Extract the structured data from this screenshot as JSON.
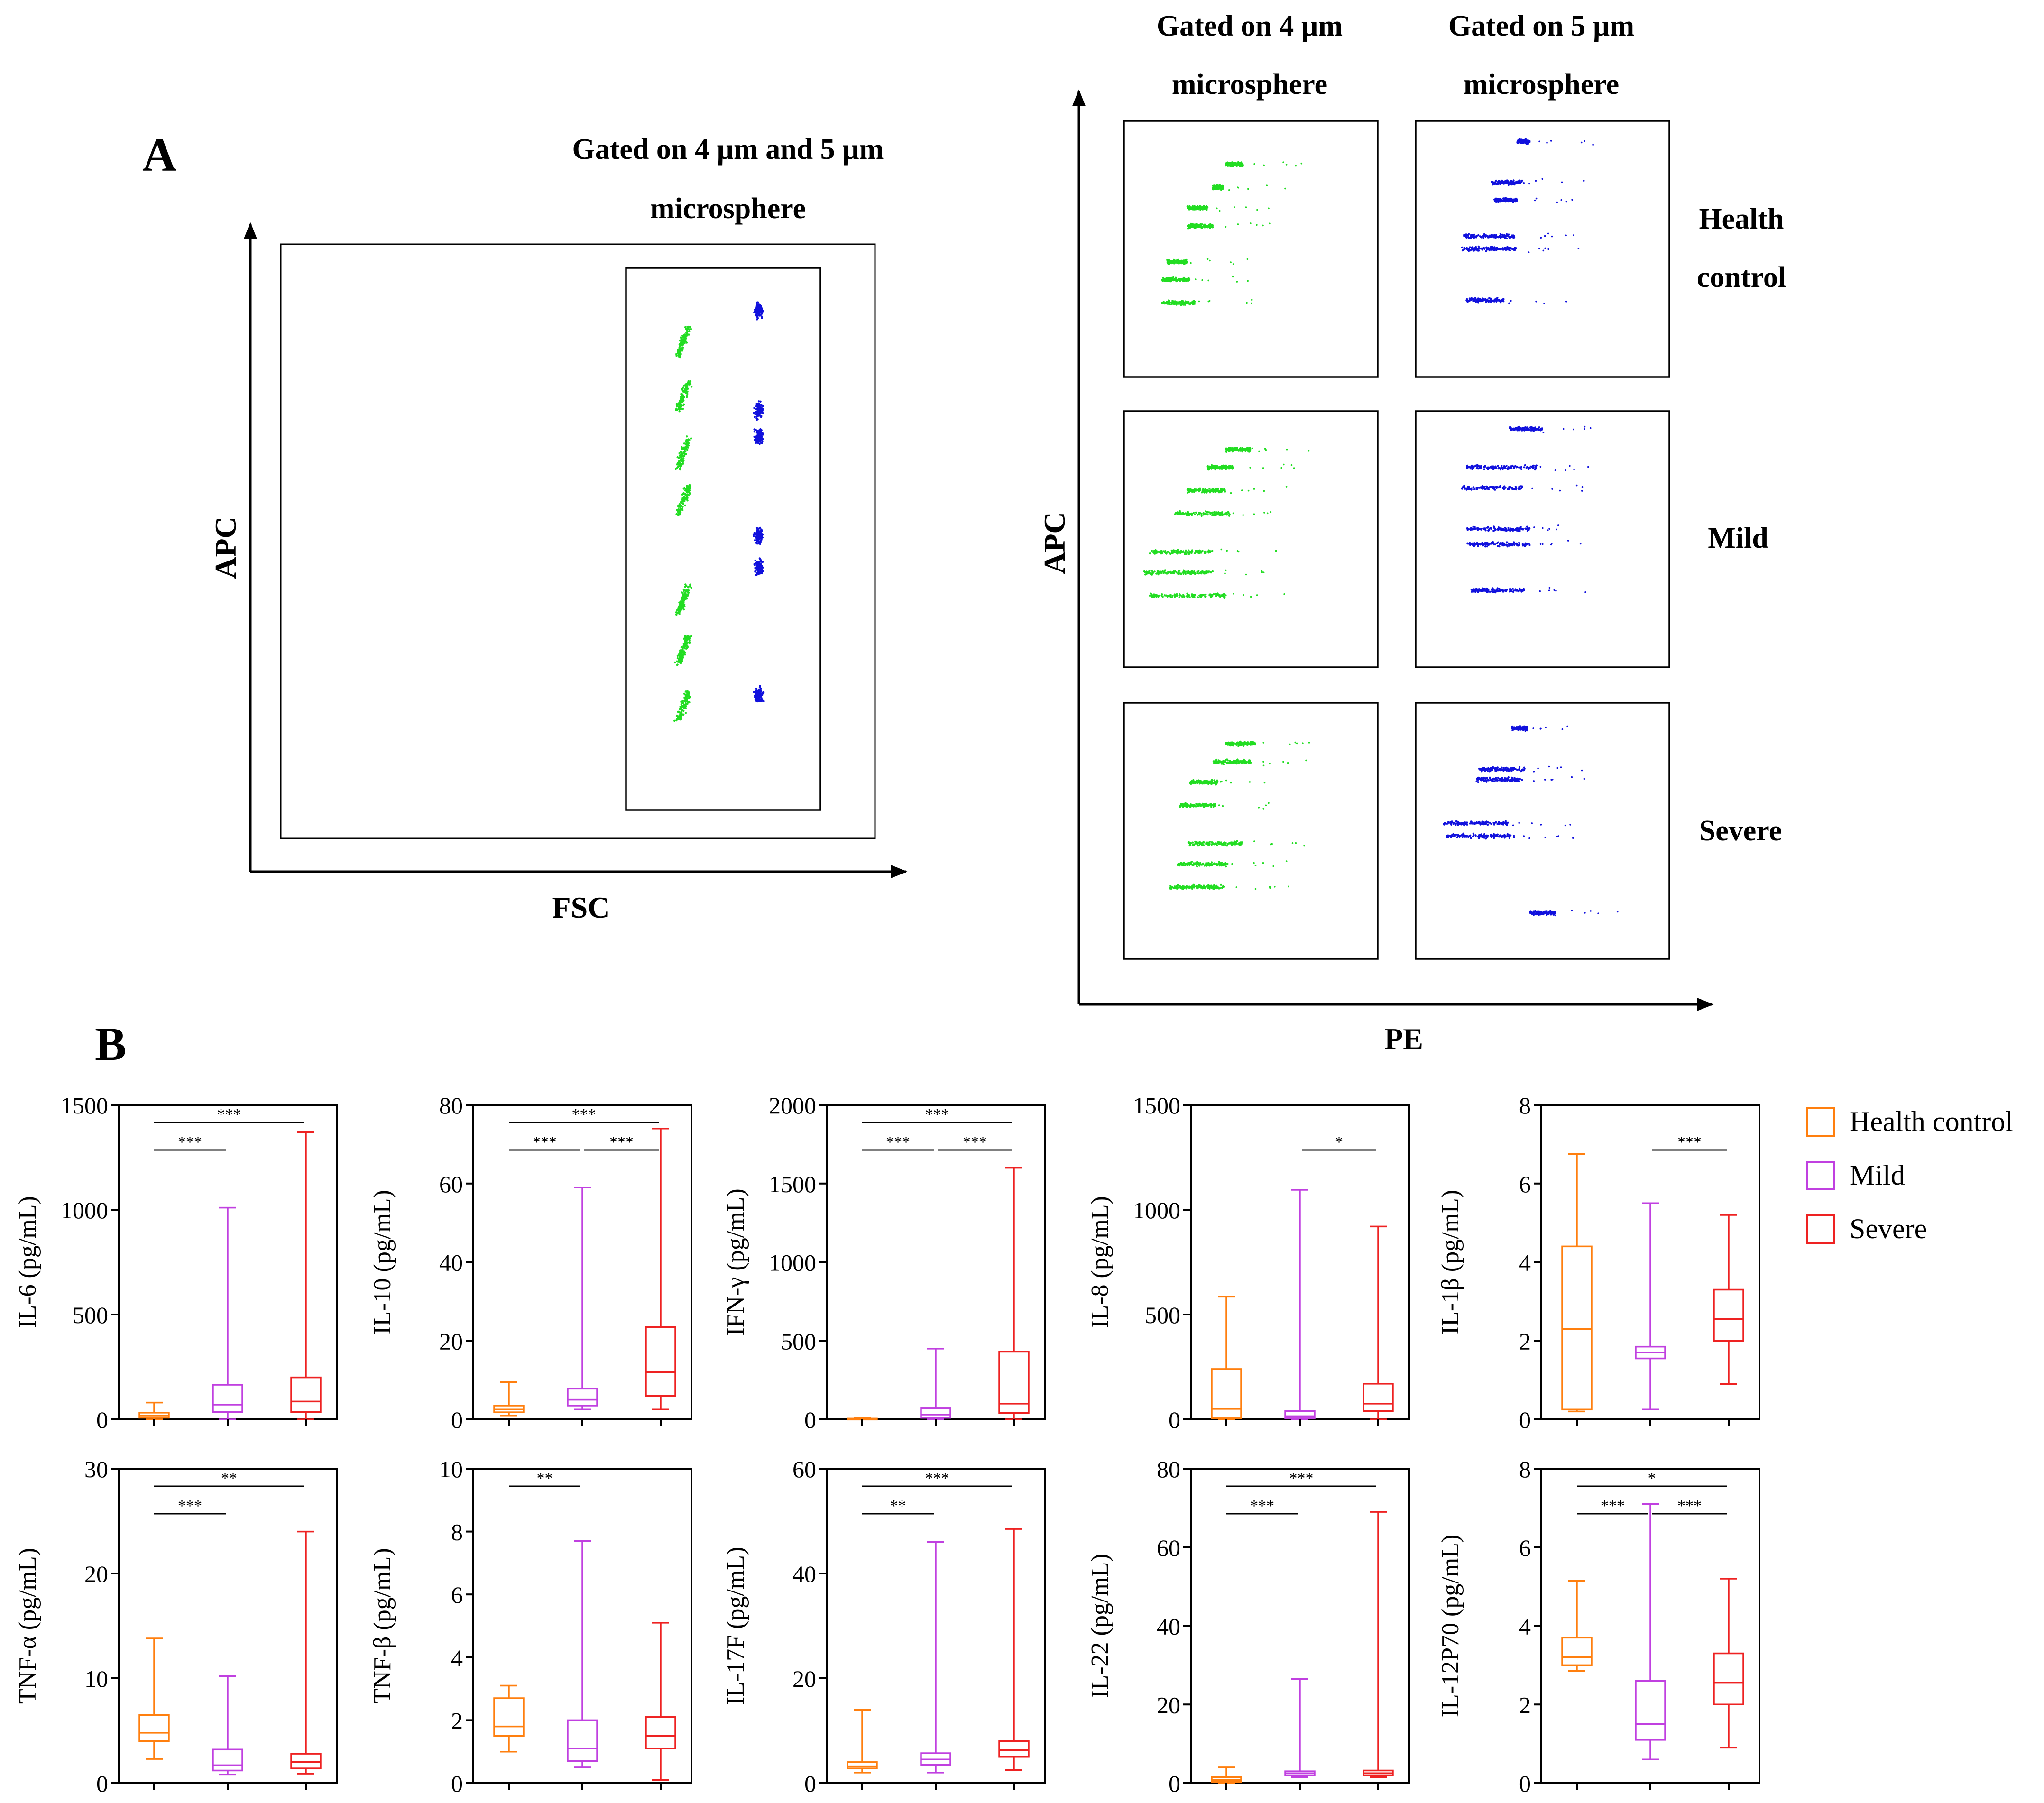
{
  "panel_a": {
    "label": "A",
    "left_title_line1": "Gated on 4 µm and 5 µm",
    "left_title_line2": "microsphere",
    "left_xlabel": "FSC",
    "left_ylabel": "APC",
    "col1_title_line1": "Gated on 4 µm",
    "col1_title_line2": "microsphere",
    "col2_title_line1": "Gated on 5 µm",
    "col2_title_line2": "microsphere",
    "row_labels": [
      [
        "Health",
        "control"
      ],
      [
        "Mild"
      ],
      [
        "Severe"
      ]
    ],
    "right_xlabel": "PE",
    "right_ylabel": "APC",
    "colors": {
      "4um": "#22dd22",
      "5um": "#1111dd"
    }
  },
  "panel_b": {
    "label": "B",
    "legend": [
      {
        "name": "Health control",
        "color": "#ff7f0e"
      },
      {
        "name": "Mild",
        "color": "#c040e0"
      },
      {
        "name": "Severe",
        "color": "#ee2222"
      }
    ]
  },
  "chart_data": [
    {
      "type": "box",
      "ylabel": "IL-6 (pg/mL)",
      "ylim": [
        0,
        1500
      ],
      "ticks": [
        "0",
        "500",
        "1000",
        "1500"
      ],
      "boxes": [
        {
          "min": 0,
          "q1": 8,
          "median": 18,
          "q3": 32,
          "max": 80
        },
        {
          "min": 0,
          "q1": 35,
          "median": 70,
          "q3": 165,
          "max": 1010
        },
        {
          "min": 0,
          "q1": 35,
          "median": 85,
          "q3": 200,
          "max": 1370
        }
      ],
      "sig": [
        {
          "from": 0,
          "to": 1,
          "label": "***",
          "level": 1
        },
        {
          "from": 0,
          "to": 2,
          "label": "***",
          "level": 2
        }
      ]
    },
    {
      "type": "box",
      "ylabel": "IL-10 (pg/mL)",
      "ylim": [
        0,
        80
      ],
      "ticks": [
        "0",
        "20",
        "40",
        "60",
        "80"
      ],
      "boxes": [
        {
          "min": 1,
          "q1": 1.8,
          "median": 2.5,
          "q3": 3.5,
          "max": 9.5
        },
        {
          "min": 2.5,
          "q1": 3.5,
          "median": 5,
          "q3": 7.8,
          "max": 59
        },
        {
          "min": 2.5,
          "q1": 6,
          "median": 12,
          "q3": 23.5,
          "max": 74
        }
      ],
      "sig": [
        {
          "from": 0,
          "to": 1,
          "label": "***",
          "level": 1
        },
        {
          "from": 1,
          "to": 2,
          "label": "***",
          "level": 1
        },
        {
          "from": 0,
          "to": 2,
          "label": "***",
          "level": 2
        }
      ]
    },
    {
      "type": "box",
      "ylabel": "IFN-γ (pg/mL)",
      "ylim": [
        0,
        2000
      ],
      "ticks": [
        "0",
        "500",
        "1000",
        "1500",
        "2000"
      ],
      "boxes": [
        {
          "min": 0,
          "q1": 0,
          "median": 2,
          "q3": 5,
          "max": 12
        },
        {
          "min": 0,
          "q1": 10,
          "median": 30,
          "q3": 70,
          "max": 450
        },
        {
          "min": 0,
          "q1": 40,
          "median": 100,
          "q3": 430,
          "max": 1600
        }
      ],
      "sig": [
        {
          "from": 0,
          "to": 1,
          "label": "***",
          "level": 1
        },
        {
          "from": 1,
          "to": 2,
          "label": "***",
          "level": 1
        },
        {
          "from": 0,
          "to": 2,
          "label": "***",
          "level": 2
        }
      ]
    },
    {
      "type": "box",
      "ylabel": "IL-8 (pg/mL)",
      "ylim": [
        0,
        1500
      ],
      "ticks": [
        "0",
        "500",
        "1000",
        "1500"
      ],
      "boxes": [
        {
          "min": 0,
          "q1": 5,
          "median": 50,
          "q3": 240,
          "max": 585
        },
        {
          "min": 0,
          "q1": 5,
          "median": 15,
          "q3": 40,
          "max": 1095
        },
        {
          "min": 0,
          "q1": 40,
          "median": 75,
          "q3": 170,
          "max": 920
        }
      ],
      "sig": [
        {
          "from": 1,
          "to": 2,
          "label": "*",
          "level": 1
        }
      ]
    },
    {
      "type": "box",
      "ylabel": "IL-1β (pg/mL)",
      "ylim": [
        0,
        8
      ],
      "ticks": [
        "0",
        "2",
        "4",
        "6",
        "8"
      ],
      "boxes": [
        {
          "min": 0.2,
          "q1": 0.25,
          "median": 2.3,
          "q3": 4.4,
          "max": 6.75
        },
        {
          "min": 0.25,
          "q1": 1.55,
          "median": 1.7,
          "q3": 1.85,
          "max": 5.5
        },
        {
          "min": 0.9,
          "q1": 2.0,
          "median": 2.55,
          "q3": 3.3,
          "max": 5.2
        }
      ],
      "sig": [
        {
          "from": 1,
          "to": 2,
          "label": "***",
          "level": 1
        }
      ]
    },
    {
      "type": "box",
      "ylabel": "TNF-α (pg/mL)",
      "ylim": [
        0,
        30
      ],
      "ticks": [
        "0",
        "10",
        "20",
        "30"
      ],
      "boxes": [
        {
          "min": 2.3,
          "q1": 4,
          "median": 4.8,
          "q3": 6.5,
          "max": 13.8
        },
        {
          "min": 0.8,
          "q1": 1.2,
          "median": 1.7,
          "q3": 3.2,
          "max": 10.2
        },
        {
          "min": 0.9,
          "q1": 1.4,
          "median": 2.0,
          "q3": 2.8,
          "max": 24
        }
      ],
      "sig": [
        {
          "from": 0,
          "to": 1,
          "label": "***",
          "level": 1
        },
        {
          "from": 0,
          "to": 2,
          "label": "**",
          "level": 2
        }
      ]
    },
    {
      "type": "box",
      "ylabel": "TNF-β (pg/mL)",
      "ylim": [
        0,
        10
      ],
      "ticks": [
        "0",
        "2",
        "4",
        "6",
        "8",
        "10"
      ],
      "boxes": [
        {
          "min": 1,
          "q1": 1.5,
          "median": 1.8,
          "q3": 2.7,
          "max": 3.1
        },
        {
          "min": 0.5,
          "q1": 0.7,
          "median": 1.1,
          "q3": 2.0,
          "max": 7.7
        },
        {
          "min": 0.1,
          "q1": 1.1,
          "median": 1.5,
          "q3": 2.1,
          "max": 5.1
        }
      ],
      "sig": [
        {
          "from": 0,
          "to": 1,
          "label": "**",
          "level": 2
        }
      ]
    },
    {
      "type": "box",
      "ylabel": "IL-17F (pg/mL)",
      "ylim": [
        0,
        60
      ],
      "ticks": [
        "0",
        "20",
        "40",
        "60"
      ],
      "boxes": [
        {
          "min": 2,
          "q1": 2.8,
          "median": 3.2,
          "q3": 4,
          "max": 14
        },
        {
          "min": 2,
          "q1": 3.5,
          "median": 4.5,
          "q3": 5.7,
          "max": 46
        },
        {
          "min": 2.5,
          "q1": 5,
          "median": 6.3,
          "q3": 8,
          "max": 48.5
        }
      ],
      "sig": [
        {
          "from": 0,
          "to": 1,
          "label": "**",
          "level": 1
        },
        {
          "from": 0,
          "to": 2,
          "label": "***",
          "level": 2
        }
      ]
    },
    {
      "type": "box",
      "ylabel": "IL-22 (pg/mL)",
      "ylim": [
        0,
        80
      ],
      "ticks": [
        "0",
        "20",
        "40",
        "60",
        "80"
      ],
      "boxes": [
        {
          "min": 0,
          "q1": 0.3,
          "median": 0.8,
          "q3": 1.5,
          "max": 4
        },
        {
          "min": 1.5,
          "q1": 2,
          "median": 2.5,
          "q3": 3,
          "max": 26.5
        },
        {
          "min": 1.5,
          "q1": 2,
          "median": 2.5,
          "q3": 3.2,
          "max": 69
        }
      ],
      "sig": [
        {
          "from": 0,
          "to": 1,
          "label": "***",
          "level": 1
        },
        {
          "from": 0,
          "to": 2,
          "label": "***",
          "level": 2
        }
      ]
    },
    {
      "type": "box",
      "ylabel": "IL-12P70 (pg/mL)",
      "ylim": [
        0,
        8
      ],
      "ticks": [
        "0",
        "2",
        "4",
        "6",
        "8"
      ],
      "boxes": [
        {
          "min": 2.85,
          "q1": 3.0,
          "median": 3.2,
          "q3": 3.7,
          "max": 5.15
        },
        {
          "min": 0.6,
          "q1": 1.1,
          "median": 1.5,
          "q3": 2.6,
          "max": 7.1
        },
        {
          "min": 0.9,
          "q1": 2.0,
          "median": 2.55,
          "q3": 3.3,
          "max": 5.2
        }
      ],
      "sig": [
        {
          "from": 0,
          "to": 1,
          "label": "***",
          "level": 1
        },
        {
          "from": 1,
          "to": 2,
          "label": "***",
          "level": 1
        },
        {
          "from": 0,
          "to": 2,
          "label": "*",
          "level": 2
        }
      ]
    }
  ]
}
